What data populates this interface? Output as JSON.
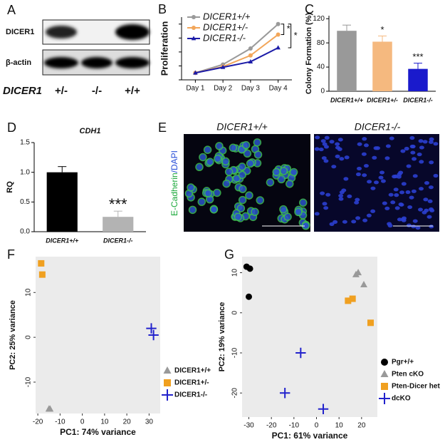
{
  "blot": {
    "label": "A",
    "rows": [
      "DICER1",
      "β-actin"
    ],
    "genotype_title": "DICER1",
    "lanes": [
      "+/-",
      "-/-",
      "+/+"
    ]
  },
  "images": {
    "label": "E",
    "titles": [
      "DICER1+/+",
      "DICER1-/-"
    ],
    "stain_green": "E-Cadherin",
    "stain_blue": "/DAPI"
  },
  "chart_data": [
    {
      "type": "line",
      "label": "B",
      "ylabel": "Proliferation",
      "categories": [
        "Day 1",
        "Day 2",
        "Day 3",
        "Day 4"
      ],
      "ylim": [
        0,
        9
      ],
      "yticks": [
        0,
        2,
        4,
        6,
        8
      ],
      "show_ytick_labels": false,
      "series": [
        {
          "name": "DICER1+/+",
          "color": "#9a9a9a",
          "marker": "circle",
          "values": [
            1,
            2.2,
            4.5,
            8
          ]
        },
        {
          "name": "DICER1+/-",
          "color": "#f2a65a",
          "marker": "circle",
          "values": [
            1,
            1.9,
            3.5,
            6.5
          ]
        },
        {
          "name": "DICER1-/-",
          "color": "#1c1ca8",
          "marker": "triangle",
          "values": [
            1,
            1.8,
            2.6,
            4.6
          ]
        }
      ],
      "annotations": [
        "*",
        "*"
      ]
    },
    {
      "type": "bar",
      "label": "C",
      "ylabel": "Colony Formation (%)",
      "categories": [
        "DICER1+/+",
        "DICER1+/-",
        "DICER1-/-"
      ],
      "values": [
        100,
        82,
        37
      ],
      "colors": [
        "#999999",
        "#f5b97f",
        "#1a1acc"
      ],
      "ylim": [
        0,
        125
      ],
      "yticks": [
        0,
        40,
        80,
        120
      ],
      "annotations": [
        null,
        "*",
        "***"
      ]
    },
    {
      "type": "bar",
      "label": "D",
      "title": "CDH1",
      "ylabel": "RQ",
      "categories": [
        "DICER1+/+",
        "DICER1-/-"
      ],
      "values": [
        1.0,
        0.25
      ],
      "colors": [
        "#000000",
        "#b3b3b3"
      ],
      "ylim": [
        0,
        1.5
      ],
      "yticks": [
        {
          "value": 0,
          "label": "0.0"
        },
        {
          "value": 0.5,
          "label": "0.5"
        },
        {
          "value": 1,
          "label": "1.0"
        },
        {
          "value": 1.5,
          "label": "1.5"
        }
      ],
      "annotations": [
        null,
        "***"
      ]
    },
    {
      "type": "scatter",
      "label": "F",
      "xlabel": "PC1: 74% variance",
      "ylabel": "PC2: 25% variance",
      "xlim": [
        -21,
        35
      ],
      "xticks": [
        -20,
        -10,
        0,
        10,
        20,
        30
      ],
      "ylim": [
        -17,
        18
      ],
      "yticks": [
        -10,
        0,
        10
      ],
      "background": "#ebebeb",
      "legend": "right",
      "series": [
        {
          "name": "DICER1+/+",
          "color": "#999999",
          "marker": "triangle",
          "x": [
            -15,
            -14.5
          ],
          "values": [
            -16,
            -16
          ]
        },
        {
          "name": "DICER1+/-",
          "color": "#f0a020",
          "marker": "square",
          "x": [
            -18.5,
            -18
          ],
          "values": [
            16.5,
            14
          ]
        },
        {
          "name": "DICER1-/-",
          "color": "#2222cc",
          "marker": "plus",
          "x": [
            31,
            32
          ],
          "values": [
            2,
            0.5
          ]
        }
      ]
    },
    {
      "type": "scatter",
      "label": "G",
      "xlabel": "PC1: 61% variance",
      "ylabel": "PC2: 19% variance",
      "xlim": [
        -33,
        27
      ],
      "xticks": [
        -30,
        -20,
        -10,
        0,
        10,
        20
      ],
      "ylim": [
        -26,
        14
      ],
      "yticks": [
        -20,
        -10,
        0,
        10
      ],
      "background": "#ebebeb",
      "legend": "right",
      "series": [
        {
          "name": "Pgr+/+",
          "color": "#000000",
          "marker": "circle",
          "x": [
            -31,
            -29.5,
            -30
          ],
          "values": [
            11.5,
            11,
            4
          ]
        },
        {
          "name": "Pten cKO",
          "color": "#999999",
          "marker": "triangle",
          "x": [
            17.5,
            18.5,
            21
          ],
          "values": [
            9.5,
            10,
            7
          ]
        },
        {
          "name": "Pten-Dicer het",
          "color": "#f0a020",
          "marker": "square",
          "x": [
            14,
            16,
            24
          ],
          "values": [
            3,
            3.5,
            -2.5
          ]
        },
        {
          "name": "dcKO",
          "color": "#2222cc",
          "marker": "plus",
          "x": [
            -7,
            -14,
            3
          ],
          "values": [
            -10,
            -20,
            -24
          ]
        }
      ]
    }
  ]
}
